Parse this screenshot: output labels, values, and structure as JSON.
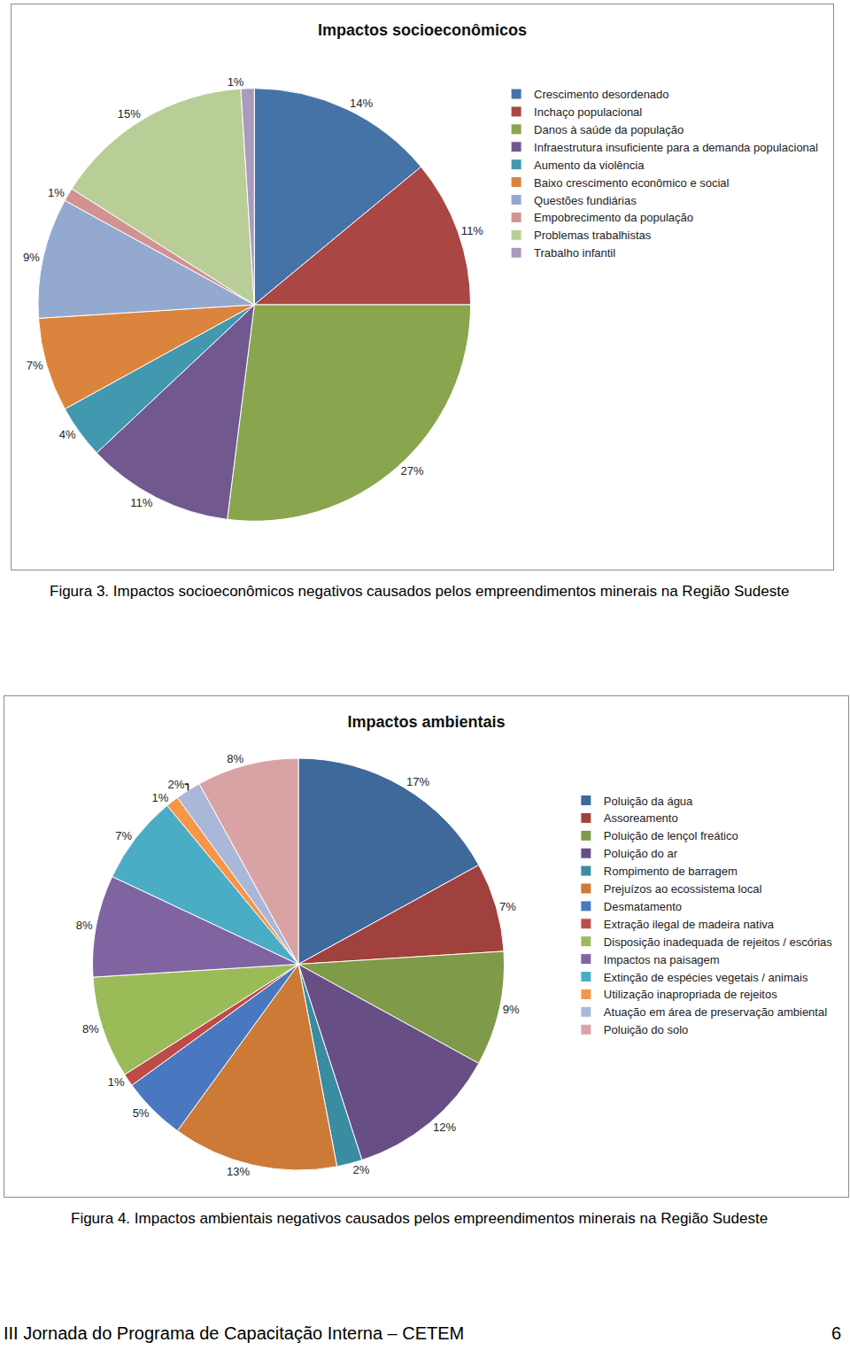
{
  "chart_data": [
    {
      "type": "pie",
      "title": "Impactos socioeconômicos",
      "categories": [
        "Crescimento desordenado",
        "Inchaço populacional",
        "Danos à saúde da população",
        "Infraestrutura insuficiente para a demanda populacional",
        "Aumento da violência",
        "Baixo crescimento econômico e social",
        "Questões fundiárias",
        "Empobrecimento da população",
        "Problemas trabalhistas",
        "Trabalho infantil"
      ],
      "values": [
        14,
        11,
        27,
        11,
        4,
        7,
        9,
        1,
        15,
        1
      ],
      "value_labels": [
        "14%",
        "11%",
        "27%",
        "11%",
        "4%",
        "7%",
        "9%",
        "1%",
        "15%",
        "1%"
      ],
      "colors": [
        "#4572A7",
        "#AA4643",
        "#89A54E",
        "#71588F",
        "#4198AF",
        "#DB843D",
        "#93A9CF",
        "#D19392",
        "#B9CD96",
        "#A99BBD"
      ],
      "data_labels": true,
      "legend": "right"
    },
    {
      "type": "pie",
      "title": "Impactos ambientais",
      "categories": [
        "Poluição da água",
        "Assoreamento",
        "Poluição de lençol freático",
        "Poluição do ar",
        "Rompimento de barragem",
        "Prejuízos ao ecossistema local",
        "Desmatamento",
        "Extração ilegal de madeira nativa",
        "Disposição inadequada de rejeitos / escórias",
        "Impactos na paisagem",
        "Extinção de espécies vegetais / animais",
        "Utilização inapropriada de rejeitos",
        "Atuação em área de preservação ambiental",
        "Poluição do solo"
      ],
      "values": [
        17,
        7,
        9,
        12,
        2,
        13,
        5,
        1,
        8,
        8,
        7,
        1,
        2,
        8
      ],
      "value_labels": [
        "17%",
        "7%",
        "9%",
        "12%",
        "2%",
        "13%",
        "5%",
        "1%",
        "8%",
        "8%",
        "7%",
        "1%",
        "2%",
        "8%"
      ],
      "colors": [
        "#3F689B",
        "#A0413E",
        "#7F9A48",
        "#674F86",
        "#3A8CA0",
        "#CC7A36",
        "#4A78C0",
        "#BE4B48",
        "#9BBB59",
        "#8064A2",
        "#4BACC6",
        "#F79646",
        "#A9B8D9",
        "#D9A3A5"
      ],
      "data_labels": true,
      "legend": "right"
    }
  ],
  "captions": [
    "Figura 3. Impactos socioeconômicos negativos causados pelos empreendimentos minerais na Região Sudeste",
    "Figura 4. Impactos ambientais negativos causados pelos empreendimentos minerais na Região Sudeste"
  ],
  "footer": {
    "text": "III Jornada do Programa de Capacitação Interna – CETEM",
    "page": 6
  }
}
